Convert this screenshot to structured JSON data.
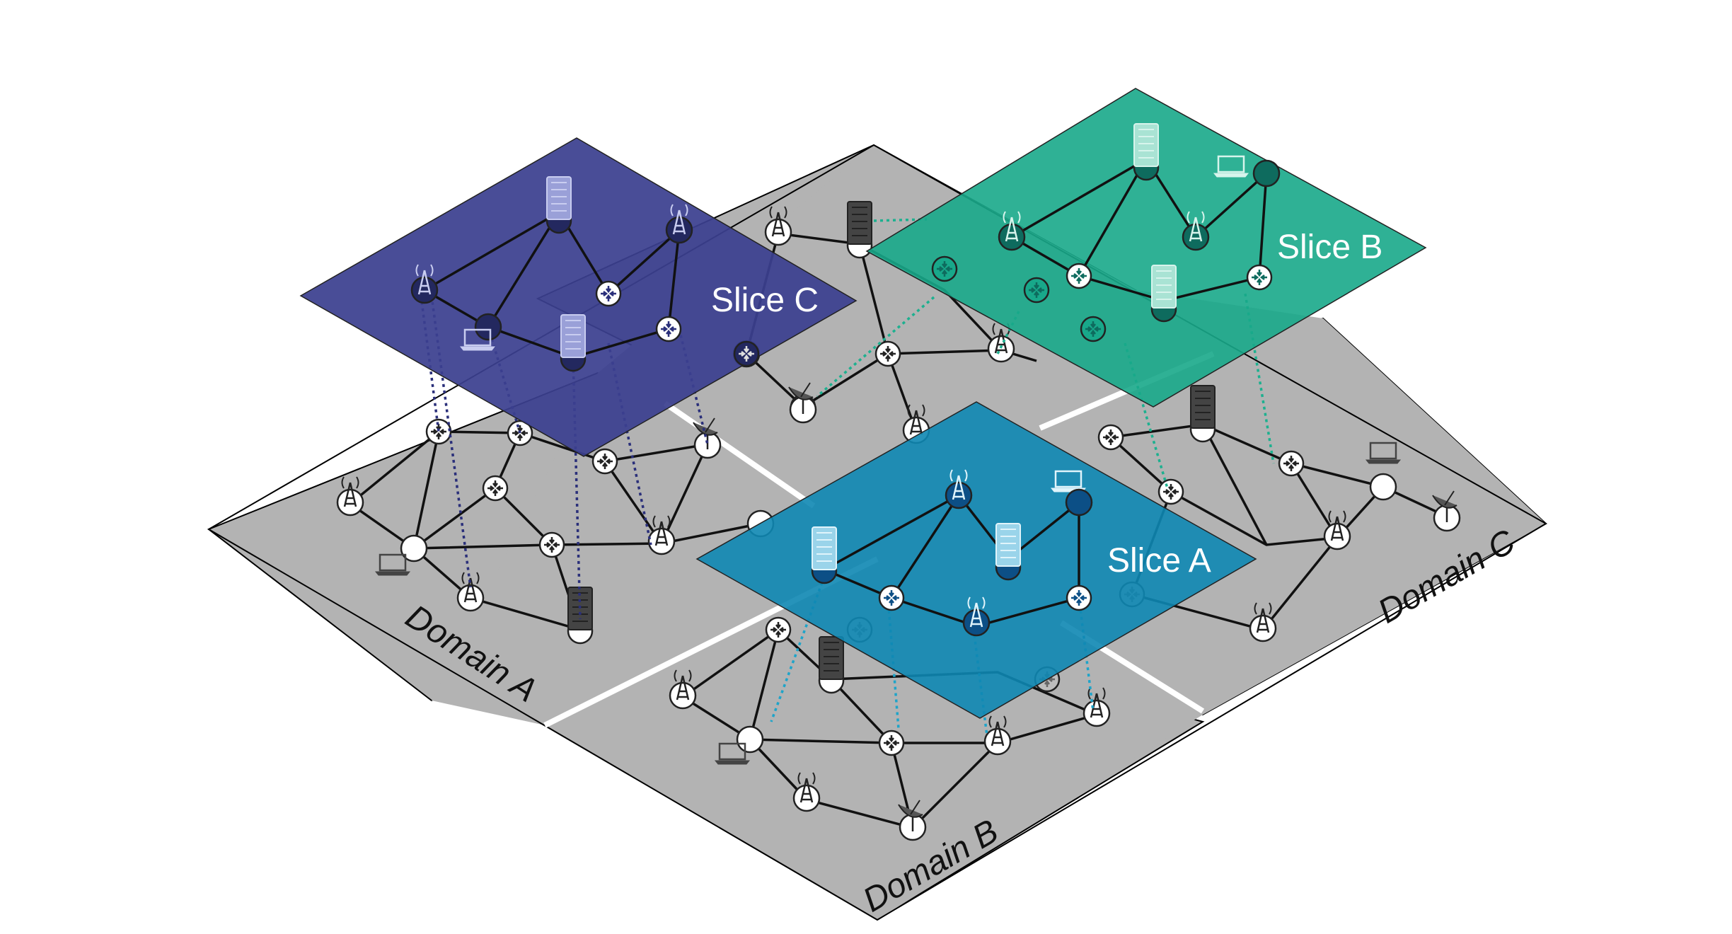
{
  "domains": [
    {
      "id": "a",
      "label": "Domain A"
    },
    {
      "id": "b",
      "label": "Domain B"
    },
    {
      "id": "c",
      "label": "Domain C"
    }
  ],
  "slices": [
    {
      "id": "a",
      "label": "Slice A",
      "color": "#0e87b3"
    },
    {
      "id": "b",
      "label": "Slice B",
      "color": "#18a88a"
    },
    {
      "id": "c",
      "label": "Slice C",
      "color": "#3b3f8f"
    }
  ],
  "colors": {
    "domain_plane": "#b3b3b3",
    "background": "#ffffff",
    "slice_a_links": "#1ea4c9",
    "slice_b_links": "#1db08f",
    "slice_c_links": "#2a2f7a"
  },
  "icons": [
    "router-icon",
    "antenna-tower-icon",
    "server-rack-icon",
    "laptop-icon",
    "satellite-dish-icon"
  ]
}
